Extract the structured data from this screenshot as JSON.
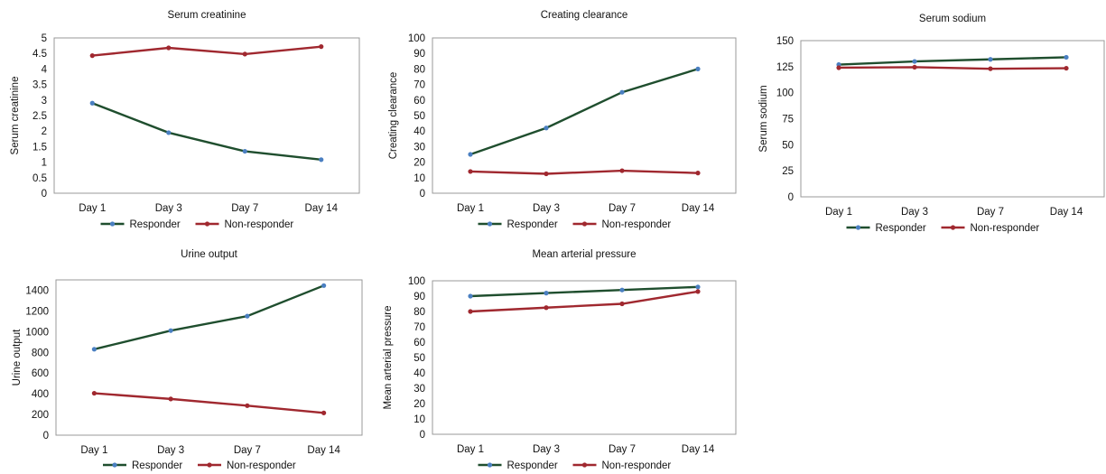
{
  "colors": {
    "responder": "#1f4e2e",
    "non_responder": "#a0282f",
    "marker_responder": "#4a7fc1",
    "marker_non_responder": "#a0282f",
    "plot_border": "#999999"
  },
  "chart_data": [
    {
      "type": "line",
      "title": "Serum creatinine",
      "ylabel": "Serum creatinine",
      "xlabel": "",
      "categories": [
        "Day 1",
        "Day 3",
        "Day 7",
        "Day 14"
      ],
      "ylim": [
        0,
        5
      ],
      "yticks": [
        "0",
        "0.5",
        "1",
        "1.5",
        "2",
        "2.5",
        "3",
        "3.5",
        "4",
        "4.5",
        "5"
      ],
      "ytick_values": [
        0,
        0.5,
        1,
        1.5,
        2,
        2.5,
        3,
        3.5,
        4,
        4.5,
        5
      ],
      "series": [
        {
          "name": "Responder",
          "values": [
            2.9,
            1.95,
            1.35,
            1.08
          ]
        },
        {
          "name": "Non-responder",
          "values": [
            4.43,
            4.68,
            4.48,
            4.72
          ]
        }
      ],
      "legend": "bottom",
      "grid": false
    },
    {
      "type": "line",
      "title": "Creating clearance",
      "ylabel": "Creating clearance",
      "xlabel": "",
      "categories": [
        "Day 1",
        "Day 3",
        "Day 7",
        "Day 14"
      ],
      "ylim": [
        0,
        100
      ],
      "yticks": [
        "0",
        "10",
        "20",
        "30",
        "40",
        "50",
        "60",
        "70",
        "80",
        "90",
        "100"
      ],
      "ytick_values": [
        0,
        10,
        20,
        30,
        40,
        50,
        60,
        70,
        80,
        90,
        100
      ],
      "series": [
        {
          "name": "Responder",
          "values": [
            25,
            42,
            65,
            80
          ]
        },
        {
          "name": "Non-responder",
          "values": [
            14,
            12.5,
            14.5,
            13
          ]
        }
      ],
      "legend": "bottom",
      "grid": false
    },
    {
      "type": "line",
      "title": "Serum sodium",
      "ylabel": "Serum sodium",
      "xlabel": "",
      "categories": [
        "Day 1",
        "Day 3",
        "Day 7",
        "Day 14"
      ],
      "ylim": [
        0,
        150
      ],
      "yticks": [
        "0",
        "25",
        "50",
        "75",
        "100",
        "125",
        "150"
      ],
      "ytick_values": [
        0,
        25,
        50,
        75,
        100,
        125,
        150
      ],
      "series": [
        {
          "name": "Responder",
          "values": [
            127,
            130,
            132,
            134
          ]
        },
        {
          "name": "Non-responder",
          "values": [
            124,
            124.5,
            123,
            123.5
          ]
        }
      ],
      "legend": "bottom",
      "grid": false
    },
    {
      "type": "line",
      "title": "Urine output",
      "ylabel": "Urine output",
      "xlabel": "",
      "categories": [
        "Day 1",
        "Day 3",
        "Day 7",
        "Day 14"
      ],
      "ylim": [
        0,
        1500
      ],
      "yticks": [
        "0",
        "200",
        "400",
        "600",
        "800",
        "1000",
        "1200",
        "1400"
      ],
      "ytick_values": [
        0,
        200,
        400,
        600,
        800,
        1000,
        1200,
        1400
      ],
      "series": [
        {
          "name": "Responder",
          "values": [
            830,
            1010,
            1150,
            1445
          ]
        },
        {
          "name": "Non-responder",
          "values": [
            405,
            350,
            285,
            215
          ]
        }
      ],
      "legend": "bottom",
      "grid": false
    },
    {
      "type": "line",
      "title": "Mean arterial pressure",
      "ylabel": "Mean arterial pressure",
      "xlabel": "",
      "categories": [
        "Day 1",
        "Day 3",
        "Day 7",
        "Day 14"
      ],
      "ylim": [
        0,
        100
      ],
      "yticks": [
        "0",
        "10",
        "20",
        "30",
        "40",
        "50",
        "60",
        "70",
        "80",
        "90",
        "100"
      ],
      "ytick_values": [
        0,
        10,
        20,
        30,
        40,
        50,
        60,
        70,
        80,
        90,
        100
      ],
      "series": [
        {
          "name": "Responder",
          "values": [
            90,
            92,
            94,
            96
          ]
        },
        {
          "name": "Non-responder",
          "values": [
            80,
            82.5,
            85,
            93
          ]
        }
      ],
      "legend": "bottom",
      "grid": false
    }
  ]
}
